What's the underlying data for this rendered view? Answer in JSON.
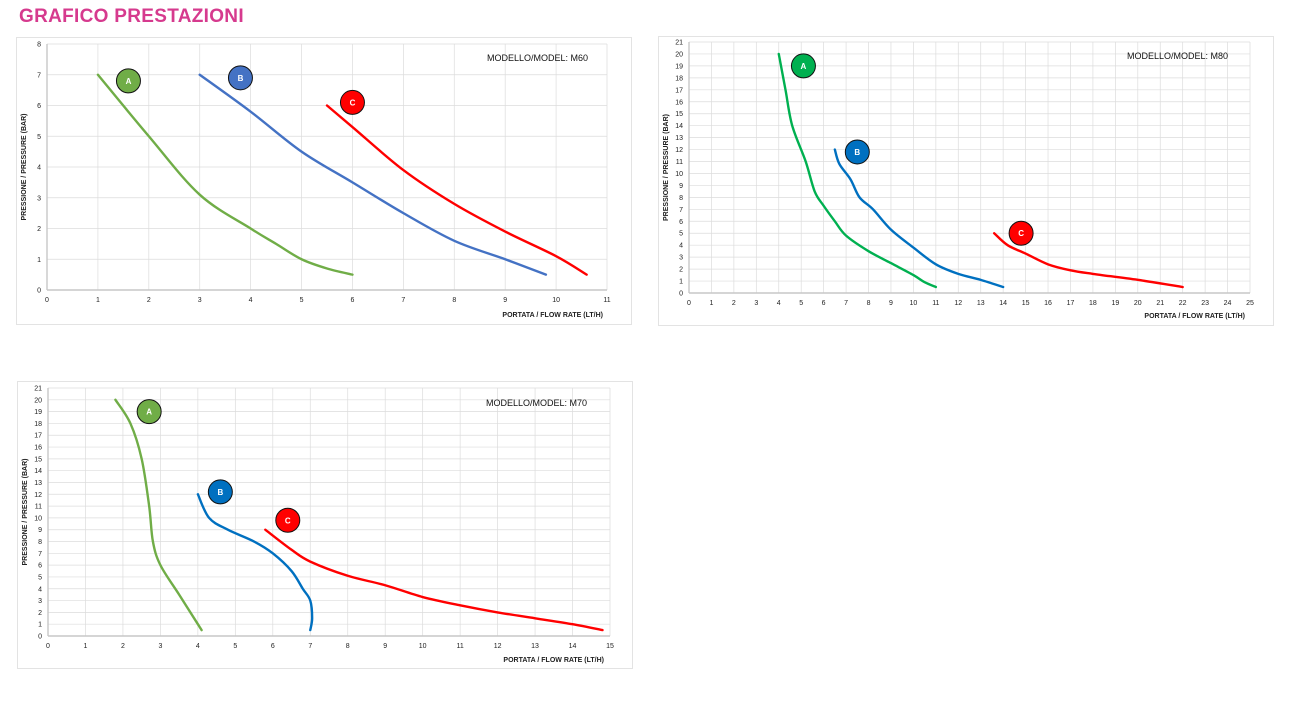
{
  "page": {
    "title": "GRAFICO PRESTAZIONI"
  },
  "chart_data": [
    {
      "id": "m60",
      "type": "line",
      "title": "MODELLO/MODEL: M60",
      "xlabel": "PORTATA / FLOW RATE (LT/H)",
      "ylabel": "PRESSIONE / PRESSURE (BAR)",
      "xlim": [
        0,
        11
      ],
      "ylim": [
        0,
        8
      ],
      "xticks": [
        0,
        1,
        2,
        3,
        4,
        5,
        6,
        7,
        8,
        9,
        10,
        11
      ],
      "yticks": [
        0,
        1,
        2,
        3,
        4,
        5,
        6,
        7,
        8
      ],
      "grid": true,
      "series": [
        {
          "name": "A",
          "color": "#70ad47",
          "label_at": [
            1.6,
            6.8
          ],
          "points": [
            [
              1,
              7
            ],
            [
              2,
              5
            ],
            [
              3,
              3.1
            ],
            [
              4,
              2
            ],
            [
              4.5,
              1.5
            ],
            [
              5,
              1
            ],
            [
              5.5,
              0.7
            ],
            [
              6,
              0.5
            ]
          ]
        },
        {
          "name": "B",
          "color": "#4472c4",
          "label_at": [
            3.8,
            6.9
          ],
          "points": [
            [
              3,
              7
            ],
            [
              4,
              5.8
            ],
            [
              5,
              4.5
            ],
            [
              6,
              3.5
            ],
            [
              7,
              2.5
            ],
            [
              8,
              1.6
            ],
            [
              9,
              1
            ],
            [
              9.8,
              0.5
            ]
          ]
        },
        {
          "name": "C",
          "color": "#ff0000",
          "label_at": [
            6,
            6.1
          ],
          "points": [
            [
              5.5,
              6
            ],
            [
              6,
              5.3
            ],
            [
              7,
              3.9
            ],
            [
              8,
              2.8
            ],
            [
              9,
              1.9
            ],
            [
              10,
              1.1
            ],
            [
              10.6,
              0.5
            ]
          ]
        }
      ]
    },
    {
      "id": "m80",
      "type": "line",
      "title": "MODELLO/MODEL: M80",
      "xlabel": "PORTATA / FLOW RATE (LT/H)",
      "ylabel": "PRESSIONE / PRESSURE (BAR)",
      "xlim": [
        0,
        25
      ],
      "ylim": [
        0,
        21
      ],
      "xticks": [
        0,
        1,
        2,
        3,
        4,
        5,
        6,
        7,
        8,
        9,
        10,
        11,
        12,
        13,
        14,
        15,
        16,
        17,
        18,
        19,
        20,
        21,
        22,
        23,
        24,
        25
      ],
      "yticks": [
        0,
        1,
        2,
        3,
        4,
        5,
        6,
        7,
        8,
        9,
        10,
        11,
        12,
        13,
        14,
        15,
        16,
        17,
        18,
        19,
        20,
        21
      ],
      "grid": true,
      "series": [
        {
          "name": "A",
          "color": "#00b050",
          "label_at": [
            5.1,
            19
          ],
          "points": [
            [
              4,
              20
            ],
            [
              4.3,
              17
            ],
            [
              4.6,
              14
            ],
            [
              5.2,
              11
            ],
            [
              5.6,
              8.5
            ],
            [
              6,
              7.3
            ],
            [
              6.5,
              6
            ],
            [
              7,
              4.8
            ],
            [
              8,
              3.5
            ],
            [
              9,
              2.5
            ],
            [
              10,
              1.5
            ],
            [
              10.5,
              0.9
            ],
            [
              11,
              0.5
            ]
          ]
        },
        {
          "name": "B",
          "color": "#0070c0",
          "label_at": [
            7.5,
            11.8
          ],
          "points": [
            [
              6.5,
              12
            ],
            [
              6.7,
              10.8
            ],
            [
              7.2,
              9.5
            ],
            [
              7.6,
              8
            ],
            [
              8.2,
              7
            ],
            [
              9,
              5.3
            ],
            [
              10,
              3.8
            ],
            [
              11,
              2.4
            ],
            [
              12,
              1.6
            ],
            [
              13,
              1.1
            ],
            [
              14,
              0.5
            ]
          ]
        },
        {
          "name": "C",
          "color": "#ff0000",
          "label_at": [
            14.8,
            5
          ],
          "points": [
            [
              13.6,
              5
            ],
            [
              14.2,
              4
            ],
            [
              15,
              3.3
            ],
            [
              16,
              2.4
            ],
            [
              17,
              1.9
            ],
            [
              18,
              1.6
            ],
            [
              20,
              1.1
            ],
            [
              22,
              0.5
            ]
          ]
        }
      ]
    },
    {
      "id": "m70",
      "type": "line",
      "title": "MODELLO/MODEL: M70",
      "xlabel": "PORTATA / FLOW RATE (LT/H)",
      "ylabel": "PRESSIONE / PRESSURE (BAR)",
      "xlim": [
        0,
        15
      ],
      "ylim": [
        0,
        21
      ],
      "xticks": [
        0,
        1,
        2,
        3,
        4,
        5,
        6,
        7,
        8,
        9,
        10,
        11,
        12,
        13,
        14,
        15
      ],
      "yticks": [
        0,
        1,
        2,
        3,
        4,
        5,
        6,
        7,
        8,
        9,
        10,
        11,
        12,
        13,
        14,
        15,
        16,
        17,
        18,
        19,
        20,
        21
      ],
      "grid": true,
      "series": [
        {
          "name": "A",
          "color": "#70ad47",
          "label_at": [
            2.7,
            19
          ],
          "points": [
            [
              1.8,
              20
            ],
            [
              2.2,
              18
            ],
            [
              2.5,
              15
            ],
            [
              2.7,
              11
            ],
            [
              2.8,
              8
            ],
            [
              3,
              6
            ],
            [
              3.5,
              3.5
            ],
            [
              4,
              1
            ],
            [
              4.1,
              0.5
            ]
          ]
        },
        {
          "name": "B",
          "color": "#0070c0",
          "label_at": [
            4.6,
            12.2
          ],
          "points": [
            [
              4,
              12
            ],
            [
              4.3,
              10
            ],
            [
              4.8,
              9
            ],
            [
              5.5,
              8
            ],
            [
              6,
              7
            ],
            [
              6.5,
              5.5
            ],
            [
              6.8,
              4
            ],
            [
              7,
              3
            ],
            [
              7.05,
              1.5
            ],
            [
              7,
              0.5
            ]
          ]
        },
        {
          "name": "C",
          "color": "#ff0000",
          "label_at": [
            6.4,
            9.8
          ],
          "points": [
            [
              5.8,
              9
            ],
            [
              6.5,
              7.3
            ],
            [
              7,
              6.3
            ],
            [
              8,
              5.1
            ],
            [
              9,
              4.3
            ],
            [
              10,
              3.3
            ],
            [
              11,
              2.6
            ],
            [
              12,
              2
            ],
            [
              13,
              1.5
            ],
            [
              14,
              1
            ],
            [
              14.8,
              0.5
            ]
          ]
        }
      ]
    }
  ]
}
